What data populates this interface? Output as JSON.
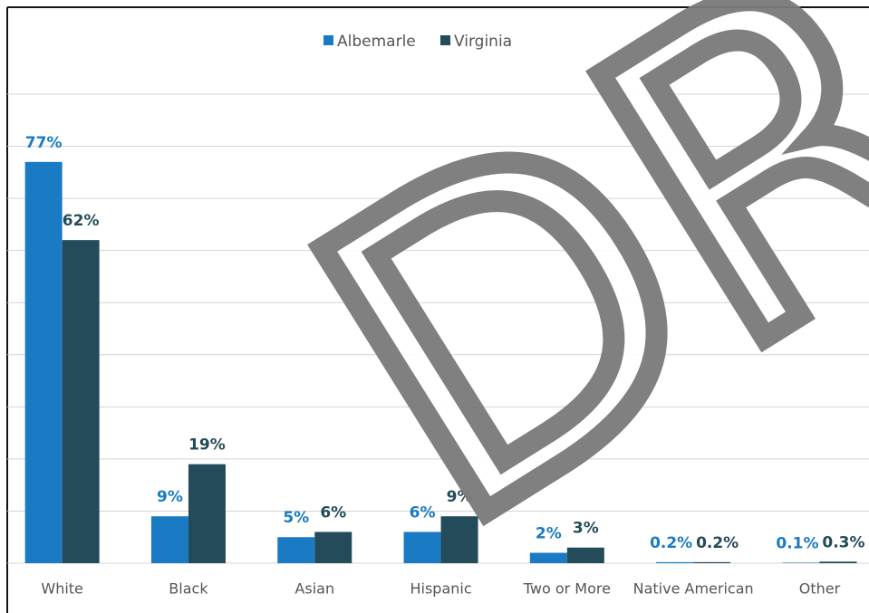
{
  "chart_data": {
    "type": "bar",
    "categories": [
      "White",
      "Black",
      "Asian",
      "Hispanic",
      "Two or More",
      "Native American",
      "Other"
    ],
    "series": [
      {
        "name": "Albemarle",
        "color": "#1a7bc4",
        "values": [
          77,
          9,
          5,
          6,
          2,
          0.2,
          0.1
        ],
        "value_labels": [
          "77%",
          "9%",
          "5%",
          "6%",
          "2%",
          "0.2%",
          "0.1%"
        ]
      },
      {
        "name": "Virginia",
        "color": "#234b5a",
        "values": [
          62,
          19,
          6,
          9,
          3,
          0.2,
          0.3
        ],
        "value_labels": [
          "62%",
          "19%",
          "6%",
          "9%",
          "3%",
          "0.2%",
          "0.3%"
        ]
      }
    ],
    "ylim": [
      0,
      90
    ],
    "yticks": [
      0,
      10,
      20,
      30,
      40,
      50,
      60,
      70,
      80,
      90
    ],
    "grid": true,
    "legend": "top",
    "watermark": "DR"
  }
}
